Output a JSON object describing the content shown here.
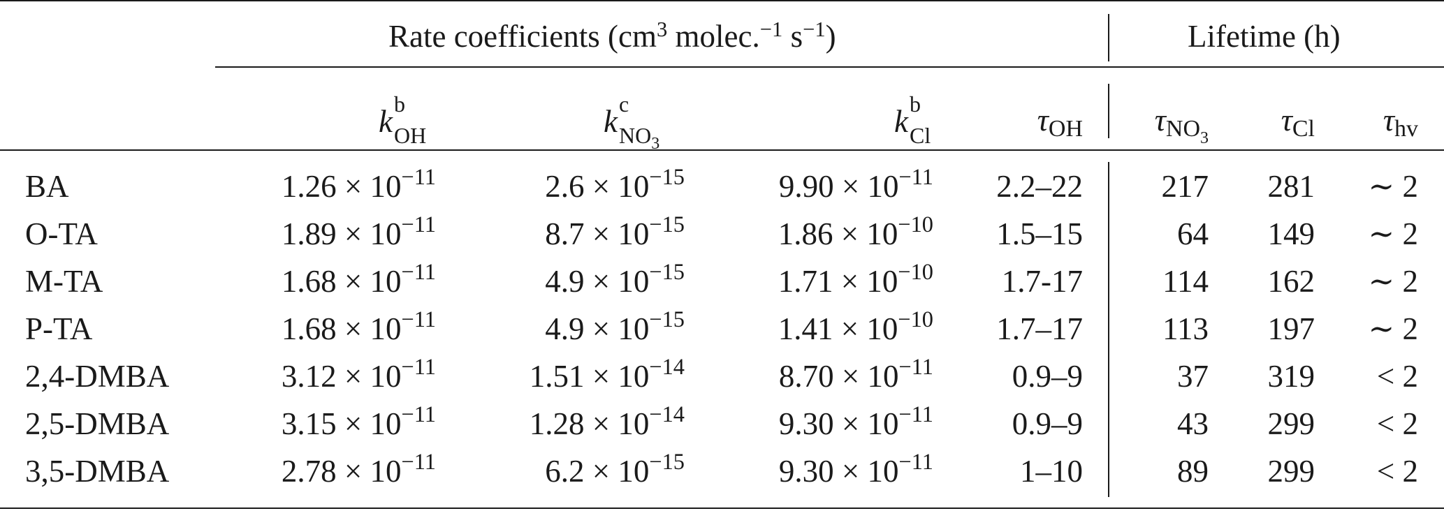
{
  "header": {
    "group_rate": "Rate coefficients (cm",
    "group_rate_exp1": "3",
    "group_rate_mid": " molec.",
    "group_rate_exp2": "−1",
    "group_rate_tail": " s",
    "group_rate_exp3": "−1",
    "group_rate_close": ")",
    "group_life": "Lifetime (h)",
    "cols": {
      "koh": {
        "base": "k",
        "sup": "b",
        "sub": "OH"
      },
      "kno3": {
        "base": "k",
        "sup": "c",
        "sub": "NO",
        "sub2": "3"
      },
      "kcl": {
        "base": "k",
        "sup": "b",
        "sub": "Cl"
      },
      "tauoh": {
        "base": "τ",
        "sub": "OH"
      },
      "tauno3": {
        "base": "τ",
        "sub": "NO",
        "sub2": "3"
      },
      "taucl": {
        "base": "τ",
        "sub": "Cl"
      },
      "tauhv": {
        "base": "τ",
        "sub": "hv"
      }
    }
  },
  "rows": [
    {
      "name": "BA",
      "koh_m": "1.26",
      "koh_e": "−11",
      "kno3_m": "2.6",
      "kno3_e": "−15",
      "kcl_m": "9.90",
      "kcl_e": "−11",
      "tauoh": "2.2–22",
      "tauno3": "217",
      "taucl": "281",
      "tauhv": "∼ 2"
    },
    {
      "name": "O-TA",
      "koh_m": "1.89",
      "koh_e": "−11",
      "kno3_m": "8.7",
      "kno3_e": "−15",
      "kcl_m": "1.86",
      "kcl_e": "−10",
      "tauoh": "1.5–15",
      "tauno3": "64",
      "taucl": "149",
      "tauhv": "∼ 2"
    },
    {
      "name": "M-TA",
      "koh_m": "1.68",
      "koh_e": "−11",
      "kno3_m": "4.9",
      "kno3_e": "−15",
      "kcl_m": "1.71",
      "kcl_e": "−10",
      "tauoh": "1.7-17",
      "tauno3": "114",
      "taucl": "162",
      "tauhv": "∼ 2"
    },
    {
      "name": "P-TA",
      "koh_m": "1.68",
      "koh_e": "−11",
      "kno3_m": "4.9",
      "kno3_e": "−15",
      "kcl_m": "1.41",
      "kcl_e": "−10",
      "tauoh": "1.7–17",
      "tauno3": "113",
      "taucl": "197",
      "tauhv": "∼ 2"
    },
    {
      "name": "2,4-DMBA",
      "koh_m": "3.12",
      "koh_e": "−11",
      "kno3_m": "1.51",
      "kno3_e": "−14",
      "kcl_m": "8.70",
      "kcl_e": "−11",
      "tauoh": "0.9–9",
      "tauno3": "37",
      "taucl": "319",
      "tauhv": "< 2"
    },
    {
      "name": "2,5-DMBA",
      "koh_m": "3.15",
      "koh_e": "−11",
      "kno3_m": "1.28",
      "kno3_e": "−14",
      "kcl_m": "9.30",
      "kcl_e": "−11",
      "tauoh": "0.9–9",
      "tauno3": "43",
      "taucl": "299",
      "tauhv": "< 2"
    },
    {
      "name": "3,5-DMBA",
      "koh_m": "2.78",
      "koh_e": "−11",
      "kno3_m": "6.2",
      "kno3_e": "−15",
      "kcl_m": "9.30",
      "kcl_e": "−11",
      "tauoh": "1–10",
      "tauno3": "89",
      "taucl": "299",
      "tauhv": "< 2"
    }
  ],
  "times_symbol": "×",
  "ten": "10"
}
